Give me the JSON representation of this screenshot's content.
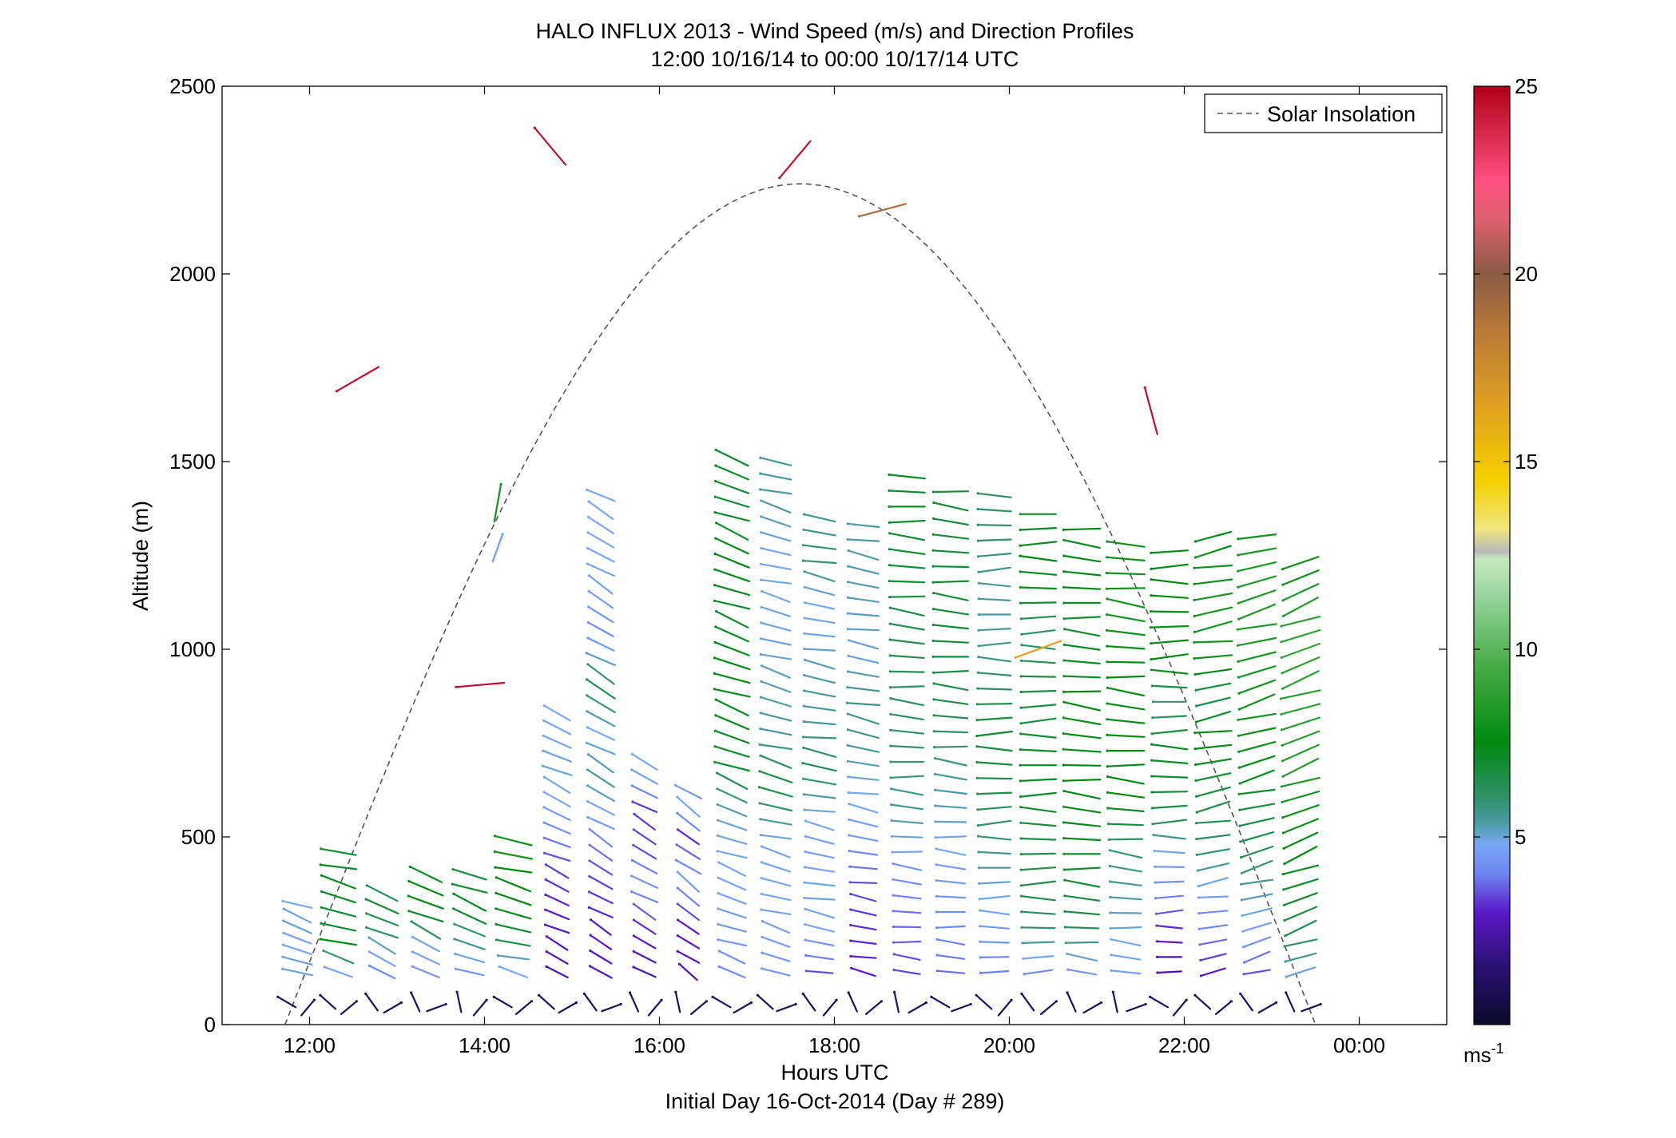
{
  "chart_data": {
    "type": "scatter",
    "subtype": "wind-barb-profile",
    "title": "HALO INFLUX 2013 - Wind Speed (m/s) and Direction Profiles",
    "subtitle": "12:00 10/16/14 to 00:00 10/17/14  UTC",
    "xlabel": "Hours UTC",
    "xlabel2": "Initial Day 16-Oct-2014 (Day # 289)",
    "ylabel": "Altitude (m)",
    "xlim": [
      11.0,
      25.0
    ],
    "ylim": [
      0,
      2500
    ],
    "xticks": [
      12,
      14,
      16,
      18,
      20,
      22,
      24
    ],
    "xtick_labels": [
      "12:00",
      "14:00",
      "16:00",
      "18:00",
      "20:00",
      "22:00",
      "00:00"
    ],
    "yticks": [
      0,
      500,
      1000,
      1500,
      2000,
      2500
    ],
    "ytick_labels": [
      "0",
      "500",
      "1000",
      "1500",
      "2000",
      "2500"
    ],
    "grid": false,
    "legend": {
      "position": "top-right",
      "entries": [
        "Solar Insolation"
      ]
    },
    "solar_insolation_curve": {
      "style": "dashed",
      "color": "#555555",
      "start_hour": 11.72,
      "end_hour": 23.5,
      "peak_hour": 17.58,
      "peak_altitude": 2240
    },
    "colorbar": {
      "range": [
        0,
        25
      ],
      "ticks": [
        5,
        10,
        15,
        20,
        25
      ],
      "tick_labels": [
        "5",
        "10",
        "15",
        "20",
        "25"
      ],
      "unit_label": "ms",
      "unit_exponent": "-1",
      "stops": [
        {
          "v": 0.0,
          "c": "#0a0a2a"
        },
        {
          "v": 1.5,
          "c": "#2a1070"
        },
        {
          "v": 3.0,
          "c": "#5a18c8"
        },
        {
          "v": 4.0,
          "c": "#6c84f0"
        },
        {
          "v": 4.8,
          "c": "#78a8f4"
        },
        {
          "v": 5.4,
          "c": "#4a9aa0"
        },
        {
          "v": 6.2,
          "c": "#2a9060"
        },
        {
          "v": 7.5,
          "c": "#008a10"
        },
        {
          "v": 9.5,
          "c": "#44aa44"
        },
        {
          "v": 11.5,
          "c": "#9ad6a0"
        },
        {
          "v": 12.4,
          "c": "#c8e8c0"
        },
        {
          "v": 12.6,
          "c": "#b8b8b8"
        },
        {
          "v": 13.2,
          "c": "#f0e680"
        },
        {
          "v": 14.5,
          "c": "#f4d000"
        },
        {
          "v": 16.5,
          "c": "#e0a020"
        },
        {
          "v": 18.5,
          "c": "#b87a38"
        },
        {
          "v": 20.0,
          "c": "#8a5a44"
        },
        {
          "v": 21.5,
          "c": "#e06070"
        },
        {
          "v": 22.5,
          "c": "#ff5080"
        },
        {
          "v": 25.0,
          "c": "#b00018"
        }
      ]
    },
    "profiles": [
      {
        "t": 11.86,
        "dir": 290,
        "speed": [
          5.0,
          5.0,
          4.8,
          4.6,
          5.1,
          5.0,
          4.8,
          1.0
        ]
      },
      {
        "t": 12.33,
        "dir": 285,
        "speed": [
          4.6,
          5.6,
          7.5,
          7.0,
          6.8,
          7.2,
          7.0,
          7.4,
          7.2,
          7.0,
          1.5
        ]
      },
      {
        "t": 12.83,
        "dir": 295,
        "speed": [
          4.2,
          4.6,
          4.8,
          6.0,
          6.2,
          6.5,
          7.0,
          6.5,
          1.2
        ]
      },
      {
        "t": 13.33,
        "dir": 295,
        "speed": [
          4.4,
          4.6,
          4.8,
          5.0,
          6.5,
          7.0,
          7.5,
          7.5,
          7.5,
          7.0,
          1.2
        ]
      },
      {
        "t": 13.83,
        "dir": 290,
        "speed": [
          4.3,
          4.8,
          5.2,
          6.0,
          6.0,
          7.0,
          7.5,
          7.2,
          7.0,
          6.8,
          1.3
        ]
      },
      {
        "t": 14.33,
        "dir": 285,
        "speed": [
          4.8,
          5.2,
          6.5,
          7.0,
          7.3,
          7.5,
          7.5,
          7.5,
          8.0,
          8.0,
          1.5
        ]
      },
      {
        "t": 14.83,
        "dir": 295,
        "speed": [
          2.5,
          2.8,
          3.0,
          3.2,
          3.5,
          4.2,
          4.8,
          5.0,
          4.9,
          4.8,
          1.3
        ]
      },
      {
        "t": 15.33,
        "dir": 300,
        "speed": [
          2.8,
          3.0,
          3.4,
          4.3,
          5.5,
          4.8,
          6.5,
          4.2,
          4.6,
          4.8,
          4.8,
          1.3
        ]
      },
      {
        "t": 15.83,
        "dir": 300,
        "speed": [
          2.6,
          2.8,
          3.2,
          4.0,
          4.5,
          3.5,
          3.4,
          3.2,
          4.5,
          4.8,
          1.0
        ]
      },
      {
        "t": 16.33,
        "dir": 305,
        "speed": [
          2.5,
          2.8,
          3.0,
          3.8,
          4.5,
          4.0,
          3.2,
          4.8,
          4.5,
          1.0
        ]
      },
      {
        "t": 16.83,
        "dir": 290,
        "speed": [
          4.2,
          4.5,
          4.8,
          5.0,
          7.0,
          7.2,
          7.5,
          7.0,
          7.5,
          6.8,
          7.2,
          1.0
        ]
      },
      {
        "t": 17.33,
        "dir": 285,
        "speed": [
          4.4,
          4.6,
          4.8,
          5.0,
          6.8,
          5.5,
          5.3,
          5.0,
          4.9,
          4.8,
          5.4,
          5.5,
          1.0
        ]
      },
      {
        "t": 17.83,
        "dir": 280,
        "speed": [
          3.5,
          4.8,
          5.0,
          4.5,
          5.0,
          6.5,
          5.5,
          5.4,
          5.0,
          4.8,
          6.0,
          5.6,
          1.2
        ]
      },
      {
        "t": 18.33,
        "dir": 280,
        "speed": [
          3.0,
          3.2,
          3.5,
          4.5,
          4.8,
          5.5,
          5.8,
          5.0,
          5.2,
          5.3,
          5.4,
          1.2
        ]
      },
      {
        "t": 18.83,
        "dir": 275,
        "speed": [
          3.4,
          3.8,
          4.5,
          5.6,
          6.0,
          6.2,
          6.5,
          6.8,
          7.0,
          7.2,
          1.5
        ]
      },
      {
        "t": 19.33,
        "dir": 275,
        "speed": [
          3.8,
          4.2,
          4.6,
          5.2,
          5.8,
          6.5,
          6.8,
          6.9,
          6.9,
          6.8,
          1.8
        ]
      },
      {
        "t": 19.83,
        "dir": 270,
        "speed": [
          4.0,
          4.5,
          5.2,
          6.0,
          6.6,
          7.0,
          6.2,
          5.5,
          5.4,
          6.0,
          6.2,
          1.8
        ]
      },
      {
        "t": 20.33,
        "dir": 270,
        "speed": [
          4.2,
          6.0,
          6.6,
          6.5,
          7.0,
          7.2,
          6.8,
          6.6,
          6.0,
          7.0,
          7.5,
          7.0,
          1.5
        ]
      },
      {
        "t": 20.83,
        "dir": 275,
        "speed": [
          4.4,
          6.5,
          7.0,
          7.4,
          7.5,
          7.8,
          7.2,
          7.0,
          7.4,
          7.5,
          1.8
        ]
      },
      {
        "t": 21.33,
        "dir": 275,
        "speed": [
          4.5,
          5.0,
          5.5,
          6.0,
          7.5,
          7.5,
          7.8,
          7.5,
          8.0,
          8.0,
          7.8,
          1.0
        ]
      },
      {
        "t": 21.83,
        "dir": 270,
        "speed": [
          2.5,
          3.0,
          4.0,
          4.6,
          6.5,
          7.0,
          7.2,
          5.8,
          7.5,
          7.8,
          7.5,
          7.6,
          1.0
        ]
      },
      {
        "t": 22.33,
        "dir": 260,
        "speed": [
          3.0,
          4.0,
          4.6,
          6.0,
          6.5,
          7.0,
          7.5,
          6.5,
          8.0,
          8.2,
          8.0,
          7.5,
          1.0
        ]
      },
      {
        "t": 22.83,
        "dir": 255,
        "speed": [
          3.5,
          4.6,
          5.5,
          6.5,
          7.0,
          7.8,
          8.0,
          8.2,
          8.4,
          8.5,
          8.0,
          1.0
        ]
      },
      {
        "t": 23.33,
        "dir": 250,
        "speed": [
          5.0,
          6.5,
          7.0,
          7.5,
          8.0,
          8.5,
          8.7,
          8.8,
          9.0,
          8.5,
          8.0,
          1.0
        ]
      }
    ],
    "isolated_barbs": [
      {
        "t": 12.55,
        "alt": 1720,
        "dir": 240,
        "speed": 24.5
      },
      {
        "t": 13.95,
        "alt": 905,
        "dir": 265,
        "speed": 24.5
      },
      {
        "t": 14.15,
        "alt": 1390,
        "dir": 10,
        "speed": 8.0
      },
      {
        "t": 14.15,
        "alt": 1270,
        "dir": 20,
        "speed": 4.5
      },
      {
        "t": 14.75,
        "alt": 2340,
        "dir": 320,
        "speed": 24.5
      },
      {
        "t": 17.55,
        "alt": 2305,
        "dir": 220,
        "speed": 24.5
      },
      {
        "t": 18.55,
        "alt": 2170,
        "dir": 255,
        "speed": 19.0
      },
      {
        "t": 20.33,
        "alt": 1000,
        "dir": 250,
        "speed": 16.5
      },
      {
        "t": 21.62,
        "alt": 1635,
        "dir": 345,
        "speed": 24.5
      }
    ]
  },
  "ui": {
    "legend_label": "Solar Insolation"
  }
}
